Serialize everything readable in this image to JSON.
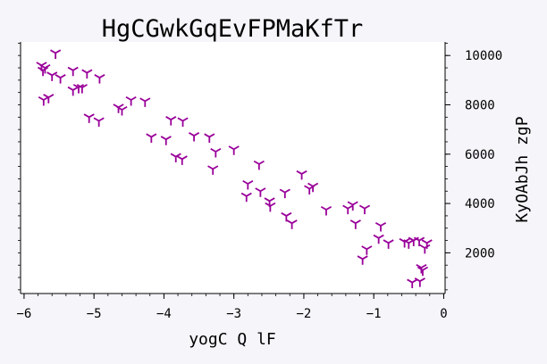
{
  "chart_data": {
    "type": "scatter",
    "title": "HgCGwkGqEvFPMaKfTr",
    "xlabel": "yogC Q lF",
    "ylabel": "KyOAbJh  zgP",
    "xlim": [
      -6.05,
      0.02
    ],
    "ylim": [
      350,
      10550
    ],
    "x_ticks": [
      -6,
      -5,
      -4,
      -3,
      -2,
      -1,
      0
    ],
    "x_tick_labels": [
      "−6",
      "−5",
      "−4",
      "−3",
      "−2",
      "−1",
      "0"
    ],
    "y_ticks": [
      2000,
      4000,
      6000,
      8000,
      10000
    ],
    "y_tick_labels": [
      "2000",
      "4000",
      "6000",
      "8000",
      "10000"
    ],
    "y_axis_side": "right",
    "grid": false,
    "marker": "tri_down",
    "color": "#990099",
    "x": [
      -5.55,
      -5.75,
      -5.7,
      -5.73,
      -5.6,
      -5.3,
      -5.48,
      -5.22,
      -5.1,
      -4.92,
      -5.3,
      -5.17,
      -5.72,
      -5.65,
      -4.47,
      -4.27,
      -4.65,
      -4.6,
      -5.07,
      -4.93,
      -3.9,
      -3.73,
      -4.18,
      -3.97,
      -3.57,
      -3.35,
      -3.83,
      -3.74,
      -3.26,
      -3.3,
      -3.0,
      -2.64,
      -2.8,
      -2.62,
      -2.82,
      -2.27,
      -2.49,
      -2.48,
      -2.25,
      -2.17,
      -2.03,
      -1.92,
      -1.87,
      -1.68,
      -1.37,
      -1.3,
      -1.13,
      -1.26,
      -0.9,
      -1.1,
      -1.16,
      -0.93,
      -0.79,
      -0.5,
      -0.35,
      -0.56,
      -0.43,
      -0.24,
      -0.27,
      -0.32,
      -0.3,
      -0.45,
      -0.34
    ],
    "y": [
      10100,
      9600,
      9500,
      9400,
      9200,
      9400,
      9100,
      8700,
      9300,
      9100,
      8600,
      8700,
      8200,
      8300,
      8200,
      8150,
      7900,
      7800,
      7500,
      7350,
      7400,
      7350,
      6700,
      6600,
      6750,
      6700,
      5900,
      5800,
      6100,
      5400,
      6200,
      5600,
      4800,
      4500,
      4300,
      4450,
      4100,
      3900,
      3500,
      3200,
      5200,
      4600,
      4700,
      3750,
      3800,
      3950,
      3800,
      3200,
      3100,
      2150,
      1750,
      2600,
      2400,
      2400,
      2500,
      2450,
      2500,
      2400,
      2200,
      1400,
      1300,
      800,
      850
    ]
  }
}
